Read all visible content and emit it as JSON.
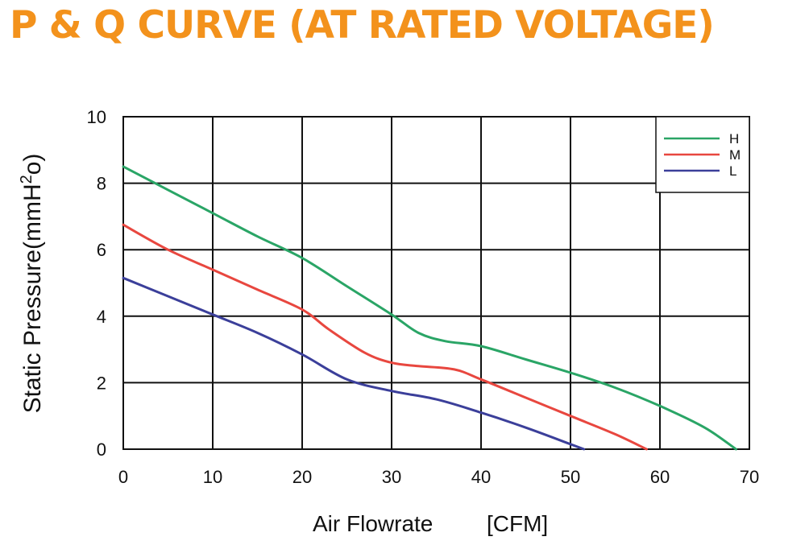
{
  "chart_data": {
    "type": "line",
    "title": "P & Q CURVE (AT RATED VOLTAGE)",
    "xlabel": "Air Flowrate",
    "xunit": "[CFM]",
    "ylabel": "Static Pressure(mmH",
    "ylabel_sup": "2",
    "ylabel_end": "o)",
    "xlim": [
      0,
      70
    ],
    "ylim": [
      0,
      10
    ],
    "xticks": [
      0,
      10,
      20,
      30,
      40,
      50,
      60,
      70
    ],
    "yticks": [
      0,
      2,
      4,
      6,
      8,
      10
    ],
    "grid": true,
    "legend_position": "top-right",
    "series": [
      {
        "name": "H",
        "color": "#2aa566",
        "points": [
          [
            0,
            8.5
          ],
          [
            5,
            7.8
          ],
          [
            10,
            7.1
          ],
          [
            15,
            6.4
          ],
          [
            20,
            5.75
          ],
          [
            25,
            4.9
          ],
          [
            30,
            4.05
          ],
          [
            33,
            3.5
          ],
          [
            36,
            3.25
          ],
          [
            40,
            3.1
          ],
          [
            45,
            2.7
          ],
          [
            50,
            2.3
          ],
          [
            55,
            1.85
          ],
          [
            60,
            1.3
          ],
          [
            65,
            0.65
          ],
          [
            68.5,
            0.0
          ]
        ]
      },
      {
        "name": "M",
        "color": "#e8473f",
        "points": [
          [
            0,
            6.75
          ],
          [
            5,
            6.0
          ],
          [
            10,
            5.4
          ],
          [
            15,
            4.8
          ],
          [
            20,
            4.2
          ],
          [
            23,
            3.6
          ],
          [
            27,
            2.9
          ],
          [
            30,
            2.6
          ],
          [
            33,
            2.5
          ],
          [
            37,
            2.4
          ],
          [
            40,
            2.1
          ],
          [
            45,
            1.55
          ],
          [
            50,
            1.0
          ],
          [
            55,
            0.45
          ],
          [
            58.5,
            0.0
          ]
        ]
      },
      {
        "name": "L",
        "color": "#3b3f9a",
        "points": [
          [
            0,
            5.15
          ],
          [
            5,
            4.6
          ],
          [
            10,
            4.05
          ],
          [
            15,
            3.5
          ],
          [
            20,
            2.85
          ],
          [
            25,
            2.1
          ],
          [
            30,
            1.75
          ],
          [
            35,
            1.5
          ],
          [
            40,
            1.1
          ],
          [
            45,
            0.65
          ],
          [
            50,
            0.15
          ],
          [
            51.5,
            0.0
          ]
        ]
      }
    ]
  }
}
